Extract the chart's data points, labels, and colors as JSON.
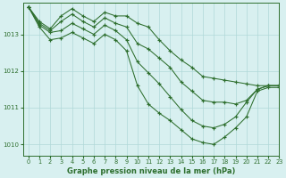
{
  "title": "Graphe pression niveau de la mer (hPa)",
  "background_color": "#d8f0f0",
  "grid_color": "#b0d8d8",
  "line_color": "#2d6e2d",
  "xlim": [
    -0.5,
    23
  ],
  "ylim": [
    1009.7,
    1013.85
  ],
  "yticks": [
    1010,
    1011,
    1012,
    1013
  ],
  "xticks": [
    0,
    1,
    2,
    3,
    4,
    5,
    6,
    7,
    8,
    9,
    10,
    11,
    12,
    13,
    14,
    15,
    16,
    17,
    18,
    19,
    20,
    21,
    22,
    23
  ],
  "series": [
    [
      1013.75,
      1013.35,
      1013.15,
      1013.5,
      1013.7,
      1013.5,
      1013.35,
      1013.6,
      1013.5,
      1013.5,
      1013.3,
      1013.2,
      1012.85,
      1012.55,
      1012.3,
      1012.1,
      1011.85,
      1011.8,
      1011.75,
      1011.7,
      1011.65,
      1011.6,
      1011.6,
      1011.6
    ],
    [
      1013.75,
      1013.3,
      1013.1,
      1013.35,
      1013.55,
      1013.35,
      1013.2,
      1013.45,
      1013.3,
      1013.2,
      1012.75,
      1012.6,
      1012.35,
      1012.1,
      1011.7,
      1011.45,
      1011.2,
      1011.15,
      1011.15,
      1011.1,
      1011.2,
      1011.5,
      1011.6,
      1011.6
    ],
    [
      1013.75,
      1013.25,
      1013.05,
      1013.1,
      1013.3,
      1013.15,
      1013.0,
      1013.25,
      1013.1,
      1012.85,
      1012.25,
      1011.95,
      1011.65,
      1011.3,
      1010.95,
      1010.65,
      1010.5,
      1010.45,
      1010.55,
      1010.75,
      1011.15,
      1011.5,
      1011.6,
      1011.6
    ],
    [
      1013.75,
      1013.2,
      1012.85,
      1012.9,
      1013.05,
      1012.9,
      1012.75,
      1013.0,
      1012.85,
      1012.55,
      1011.6,
      1011.1,
      1010.85,
      1010.65,
      1010.4,
      1010.15,
      1010.05,
      1010.0,
      1010.2,
      1010.45,
      1010.75,
      1011.45,
      1011.55,
      1011.55
    ]
  ]
}
